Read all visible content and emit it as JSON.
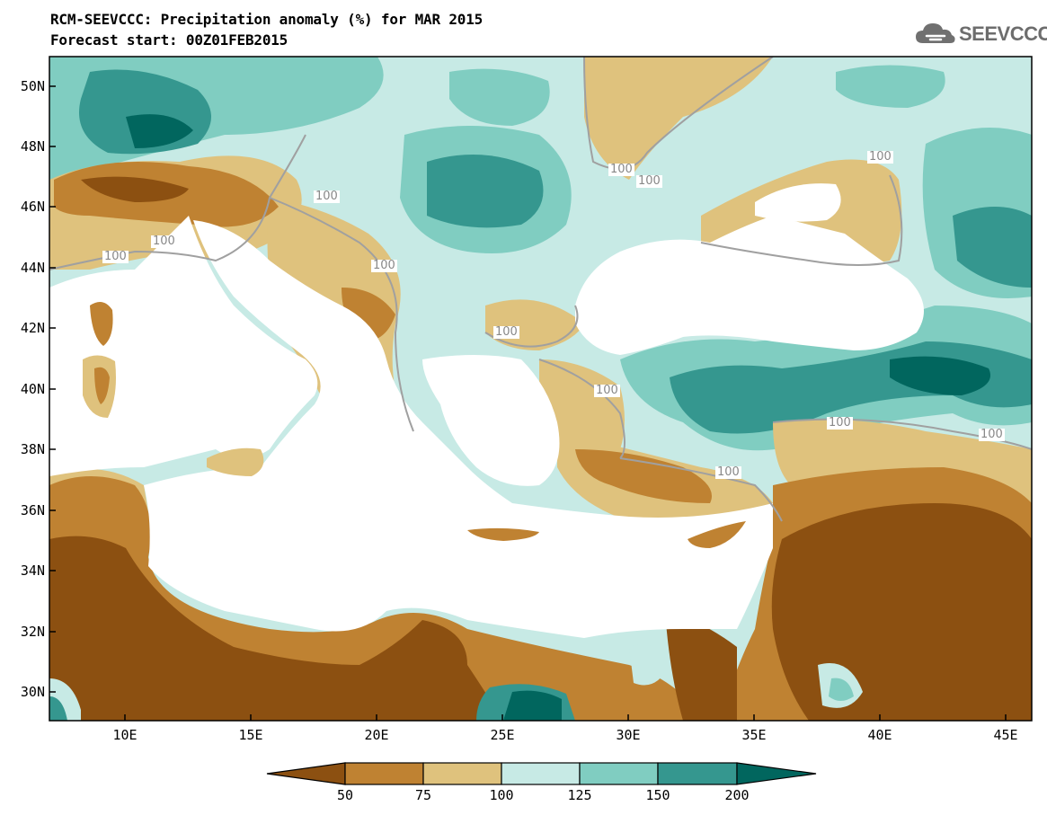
{
  "header": {
    "title_line1": "RCM-SEEVCCC: Precipitation anomaly (%) for MAR 2015",
    "title_line2": "Forecast start: 00Z01FEB2015",
    "logo_text": "SEEVCCC"
  },
  "map": {
    "lat_ticks": [
      "50N",
      "48N",
      "46N",
      "44N",
      "42N",
      "40N",
      "38N",
      "36N",
      "34N",
      "32N",
      "30N"
    ],
    "lon_ticks": [
      "10E",
      "15E",
      "20E",
      "25E",
      "30E",
      "35E",
      "40E",
      "45E"
    ],
    "contour_label": "100",
    "colors": {
      "below_50": "#8c5011",
      "50_75": "#bf8232",
      "75_100": "#dfc27d",
      "100_125": "#c7eae5",
      "125_150": "#80cdc1",
      "150_200": "#35978f",
      "above_200": "#01665e",
      "sea": "#ffffff",
      "contour_line": "#a0a0a0"
    }
  },
  "colorbar": {
    "labels": [
      "50",
      "75",
      "100",
      "125",
      "150",
      "200"
    ]
  }
}
